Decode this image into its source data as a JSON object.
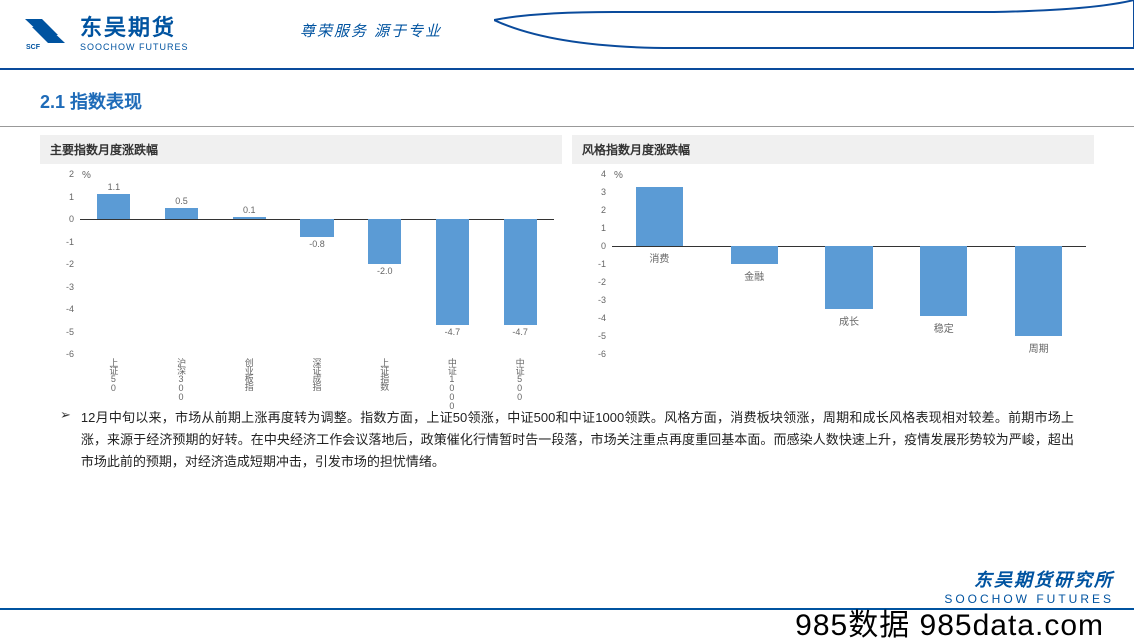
{
  "header": {
    "logo_cn": "东吴期货",
    "logo_en": "SOOCHOW FUTURES",
    "slogan": "尊荣服务 源于专业"
  },
  "section_title": "2.1 指数表现",
  "chart1": {
    "title": "主要指数月度涨跌幅",
    "y_unit": "%",
    "y_min": -6,
    "y_max": 2,
    "y_step": 1,
    "bar_color": "#5b9bd5",
    "baseline_color": "#333333",
    "bar_width_pct": 7,
    "bars": [
      {
        "label": "上证50",
        "value": 1.1,
        "show_value": "1.1"
      },
      {
        "label": "沪深300",
        "value": 0.5,
        "show_value": "0.5"
      },
      {
        "label": "创业板指",
        "value": 0.1,
        "show_value": "0.1"
      },
      {
        "label": "深证成指",
        "value": -0.8,
        "show_value": "-0.8"
      },
      {
        "label": "上证指数",
        "value": -2.0,
        "show_value": "-2.0"
      },
      {
        "label": "中证1000",
        "value": -4.7,
        "show_value": "-4.7"
      },
      {
        "label": "中证500",
        "value": -4.7,
        "show_value": "-4.7"
      }
    ]
  },
  "chart2": {
    "title": "风格指数月度涨跌幅",
    "y_unit": "%",
    "y_min": -6,
    "y_max": 4,
    "y_step": 1,
    "bar_color": "#5b9bd5",
    "baseline_color": "#333333",
    "bar_width_pct": 10,
    "bars": [
      {
        "label": "消费",
        "value": 3.3
      },
      {
        "label": "金融",
        "value": -1.0
      },
      {
        "label": "成长",
        "value": -3.5
      },
      {
        "label": "稳定",
        "value": -3.9
      },
      {
        "label": "周期",
        "value": -5.0
      }
    ]
  },
  "bullet_text": "12月中旬以来，市场从前期上涨再度转为调整。指数方面，上证50领涨，中证500和中证1000领跌。风格方面，消费板块领涨，周期和成长风格表现相对较差。前期市场上涨，来源于经济预期的好转。在中央经济工作会议落地后，政策催化行情暂时告一段落，市场关注重点再度重回基本面。而感染人数快速上升，疫情发展形势较为严峻，超出市场此前的预期，对经济造成短期冲击，引发市场的担忧情绪。",
  "footer": {
    "cn": "东吴期货研究所",
    "en": "SOOCHOW FUTURES"
  },
  "watermark": "985数据 985data.com"
}
